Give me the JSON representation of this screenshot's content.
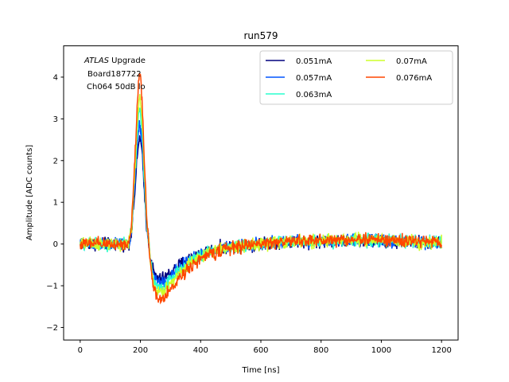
{
  "chart_data": {
    "type": "line",
    "title": "run579",
    "xlabel": "Time [ns]",
    "ylabel": "Amplitude [ADC counts]",
    "xlim": [
      -55,
      1255
    ],
    "ylim": [
      -2.3,
      4.75
    ],
    "xticks": [
      0,
      200,
      400,
      600,
      800,
      1000,
      1200
    ],
    "yticks": [
      -2,
      -1,
      0,
      1,
      2,
      3,
      4
    ],
    "grid": false,
    "legend_position": "top-right",
    "legend_columns": 2,
    "annotation": {
      "line1_italic": "ATLAS",
      "line1_rest": " Upgrade",
      "line2": "Board187722",
      "line3": "Ch064 50dB lo"
    },
    "pulse_shape": {
      "t": [
        0,
        160,
        170,
        180,
        190,
        197,
        205,
        212,
        220,
        232,
        245,
        260,
        280,
        300,
        330,
        370,
        420,
        480,
        560,
        650,
        750,
        850,
        950,
        1050,
        1200
      ],
      "v": [
        0,
        0,
        0.4,
        1.8,
        3.4,
        4.2,
        3.6,
        2.2,
        0.8,
        -0.4,
        -1.15,
        -1.35,
        -1.3,
        -1.1,
        -0.8,
        -0.5,
        -0.28,
        -0.12,
        -0.02,
        0.05,
        0.08,
        0.1,
        0.12,
        0.08,
        0.05
      ]
    },
    "series": [
      {
        "name": "0.051mA",
        "color": "#00007f",
        "scale": 0.62,
        "noise": 0.17
      },
      {
        "name": "0.057mA",
        "color": "#0055ff",
        "scale": 0.7,
        "noise": 0.17
      },
      {
        "name": "0.063mA",
        "color": "#29ffce",
        "scale": 0.78,
        "noise": 0.17
      },
      {
        "name": "0.07mA",
        "color": "#ceff29",
        "scale": 0.86,
        "noise": 0.17
      },
      {
        "name": "0.076mA",
        "color": "#ff4700",
        "scale": 1.0,
        "noise": 0.17
      }
    ]
  }
}
